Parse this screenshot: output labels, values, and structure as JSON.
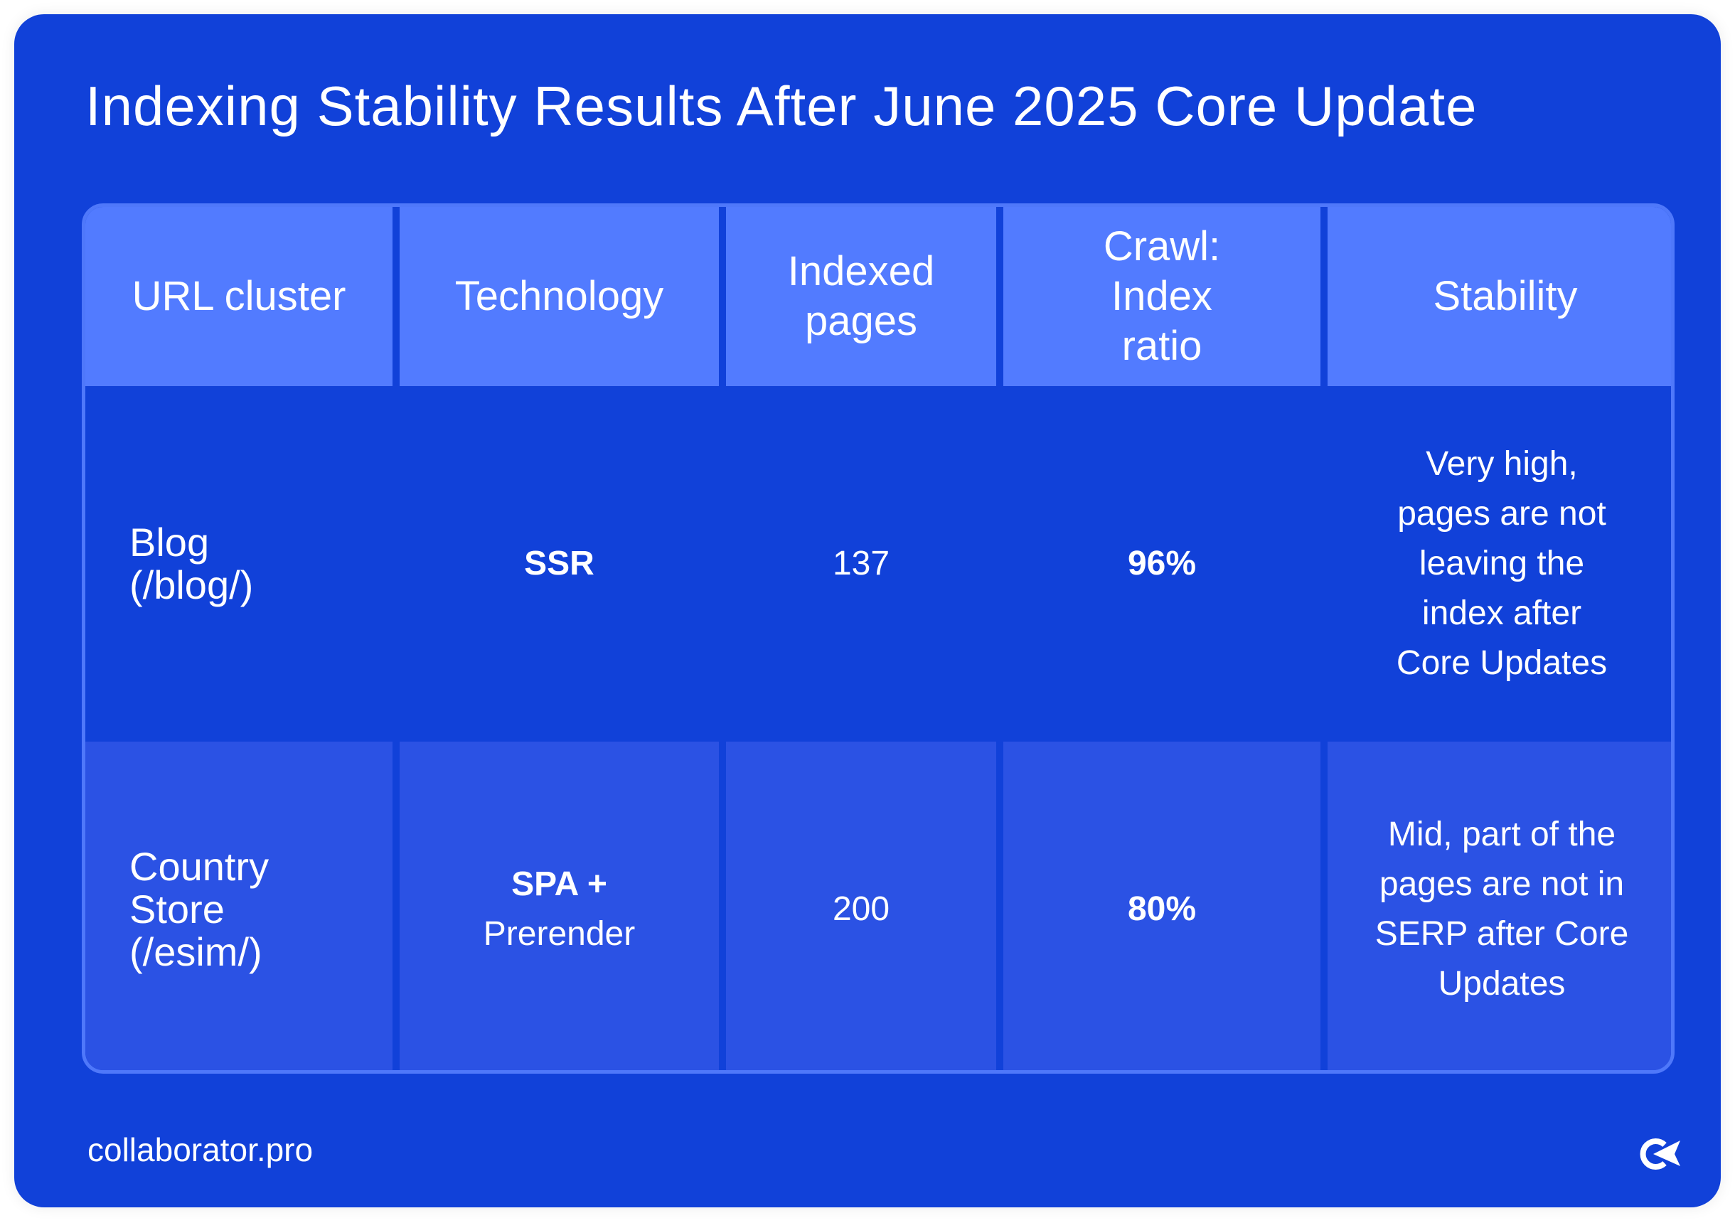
{
  "title": "Indexing Stability Results After June 2025 Core Update",
  "table": {
    "headers": [
      "URL cluster",
      "Technology",
      "Indexed pages",
      "Crawl: Index ratio",
      "Stability"
    ],
    "rows": [
      {
        "cluster": "Blog (/blog/)",
        "technology": "SSR",
        "technology_sub": "",
        "indexed": "137",
        "ratio": "96%",
        "stability": "Very high, pages are not leaving the index after Core Updates"
      },
      {
        "cluster": "Country Store (/esim/)",
        "technology": "SPA +",
        "technology_sub": "Prerender",
        "indexed": "200",
        "ratio": "80%",
        "stability": "Mid, part of the pages are not in SERP after Core Updates"
      }
    ]
  },
  "footer": {
    "brand": "collaborator.pro",
    "logo_icon": "collaborator-logo-icon"
  },
  "colors": {
    "background": "#1141D9",
    "header": "#527BFF",
    "row_alt": "#2B52E4"
  }
}
